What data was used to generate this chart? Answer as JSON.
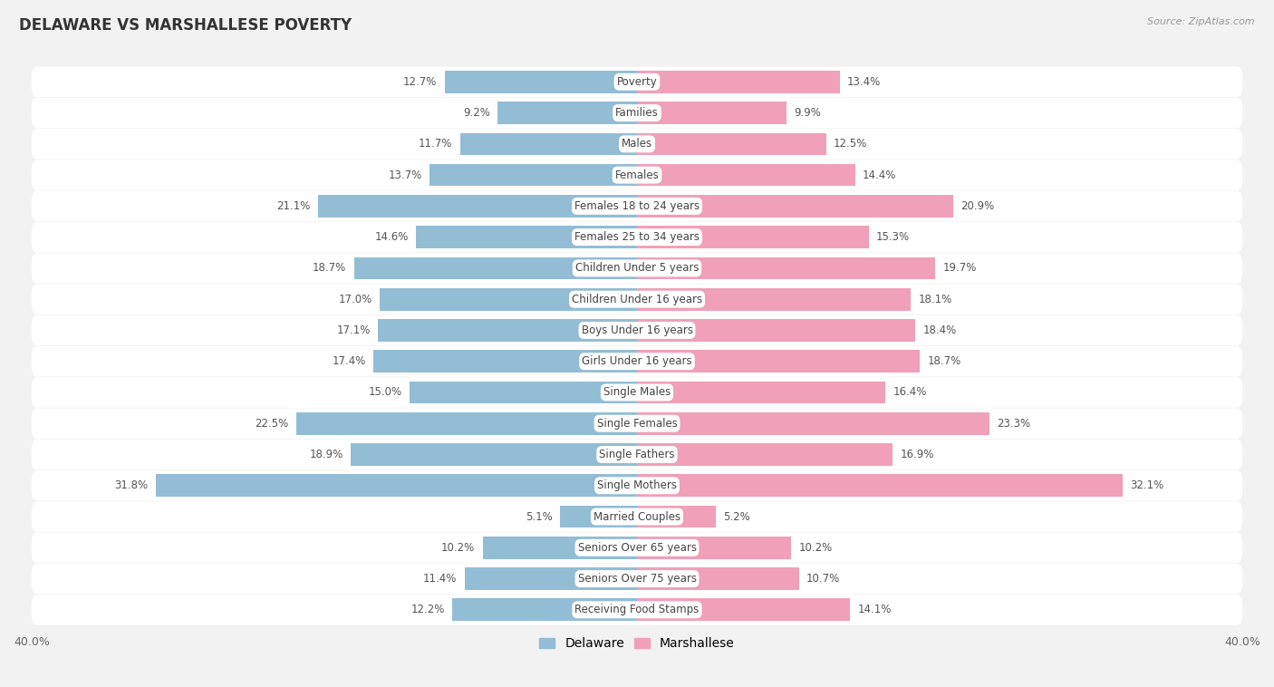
{
  "title": "DELAWARE VS MARSHALLESE POVERTY",
  "source": "Source: ZipAtlas.com",
  "categories": [
    "Poverty",
    "Families",
    "Males",
    "Females",
    "Females 18 to 24 years",
    "Females 25 to 34 years",
    "Children Under 5 years",
    "Children Under 16 years",
    "Boys Under 16 years",
    "Girls Under 16 years",
    "Single Males",
    "Single Females",
    "Single Fathers",
    "Single Mothers",
    "Married Couples",
    "Seniors Over 65 years",
    "Seniors Over 75 years",
    "Receiving Food Stamps"
  ],
  "delaware_values": [
    12.7,
    9.2,
    11.7,
    13.7,
    21.1,
    14.6,
    18.7,
    17.0,
    17.1,
    17.4,
    15.0,
    22.5,
    18.9,
    31.8,
    5.1,
    10.2,
    11.4,
    12.2
  ],
  "marshallese_values": [
    13.4,
    9.9,
    12.5,
    14.4,
    20.9,
    15.3,
    19.7,
    18.1,
    18.4,
    18.7,
    16.4,
    23.3,
    16.9,
    32.1,
    5.2,
    10.2,
    10.7,
    14.1
  ],
  "delaware_color": "#93bdd4",
  "marshallese_color": "#f0a0b8",
  "background_color": "#f2f2f2",
  "row_bg_color": "#ffffff",
  "sep_color": "#e0e0e0",
  "xlim": 40.0,
  "bar_height": 0.72,
  "label_fontsize": 8.5,
  "title_fontsize": 12,
  "source_fontsize": 8,
  "legend_fontsize": 10,
  "value_fontsize": 8.5,
  "label_pill_color": "#ffffff",
  "label_text_color": "#444444",
  "value_text_color": "#555555"
}
